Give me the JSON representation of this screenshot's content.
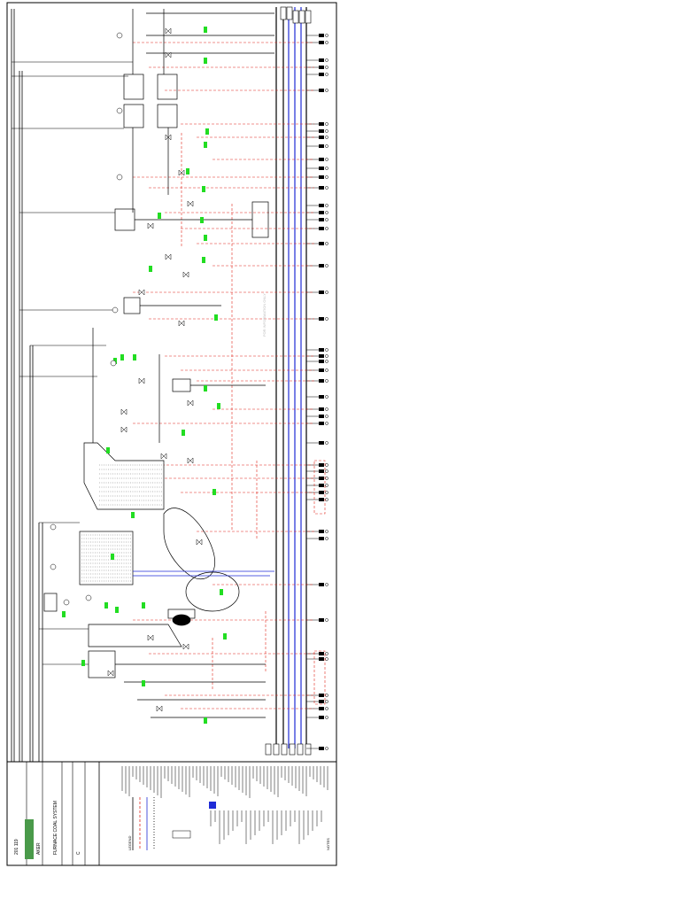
{
  "drawing": {
    "title_block": {
      "company": "AKER",
      "drawing_title": "FURNACE COAL SYSTEM",
      "drawing_number": "201 119",
      "revision": "C"
    },
    "legend_heading": "LEGEND",
    "notes_heading": "NOTES",
    "watermark": "FOR INFORMATION ONLY"
  },
  "colors": {
    "line": "#000000",
    "signal_blue": "#1f2bd6",
    "signal_red": "#e0261d",
    "tag_green": "#22dd22",
    "background": "#ffffff"
  },
  "icons": [
    "pump-icon",
    "valve-icon",
    "tank-icon",
    "kiln-icon",
    "instrument-tag-icon"
  ]
}
